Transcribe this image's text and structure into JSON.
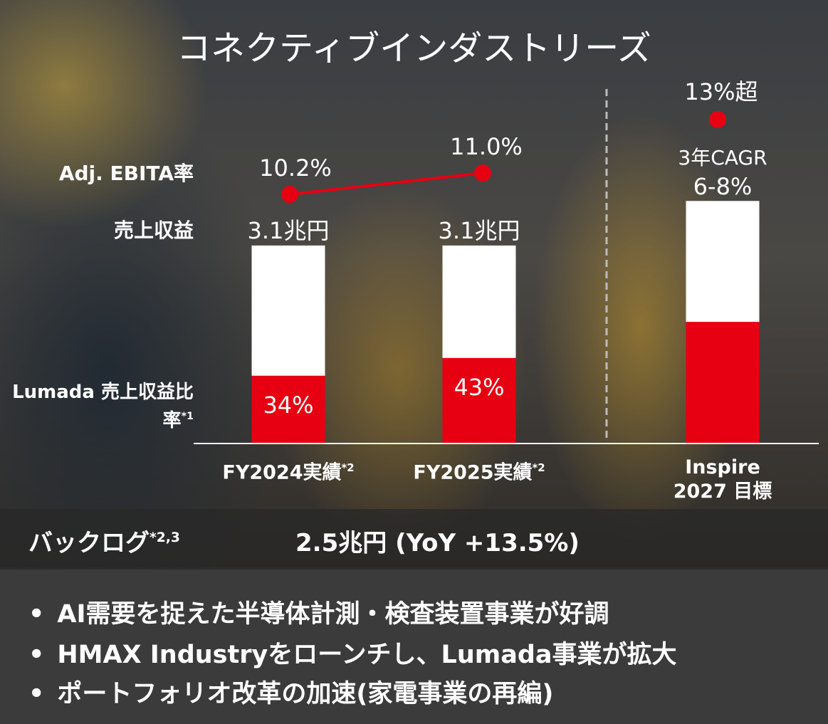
{
  "chart_data": {
    "type": "bar",
    "title": "コネクティブインダストリーズ",
    "categories": [
      "FY2024実績",
      "FY2025実績",
      "Inspire 2027 目標"
    ],
    "category_notes": [
      "*2",
      "*2",
      null
    ],
    "series": [
      {
        "name": "売上収益",
        "color": "#ffffff",
        "values": [
          3.1,
          3.1,
          3.8
        ],
        "value_labels": [
          "3.1兆円",
          "3.1兆円",
          null
        ]
      },
      {
        "name": "Lumada 売上収益比率",
        "note": "*1",
        "color": "#e60012",
        "values": [
          34,
          43,
          50
        ],
        "value_labels": [
          "34%",
          "43%",
          null
        ]
      },
      {
        "name": "Adj. EBITA率",
        "color": "#e60012",
        "values": [
          10.2,
          11.0,
          13
        ],
        "value_labels": [
          "10.2%",
          "11.0%",
          "13%超"
        ]
      }
    ],
    "annotations": [
      "3年CAGR",
      "6-8%"
    ]
  },
  "backlog": {
    "label": "バックログ",
    "note": "*2,3",
    "value": "2.5兆円 (YoY +13.5%)"
  },
  "bullets": [
    "AI需要を捉えた半導体計測・検査装置事業が好調",
    "HMAX Industryをローンチし、Lumada事業が拡大",
    "ポートフォリオ改革の加速(家電事業の再編)"
  ]
}
